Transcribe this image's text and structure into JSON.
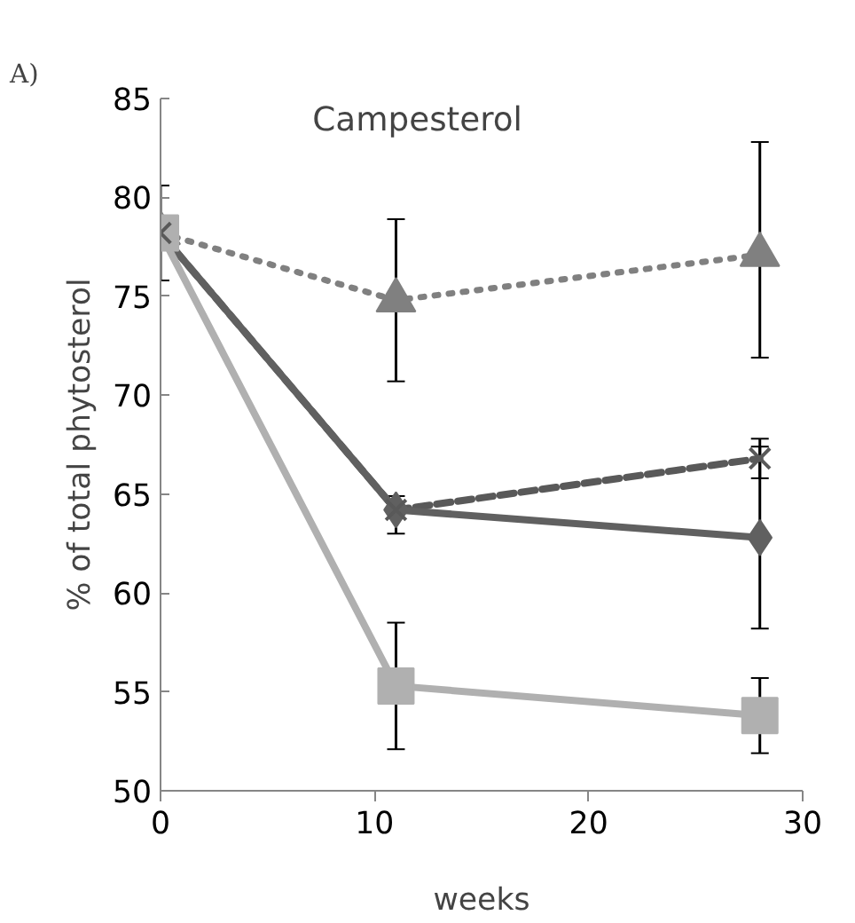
{
  "chart_data": {
    "type": "line",
    "title": "Campesterol",
    "xlabel": "weeks",
    "ylabel": "% of total phytosterol",
    "annotations": [
      "A)"
    ],
    "x": [
      0,
      11,
      28
    ],
    "xlim": [
      0,
      30
    ],
    "xticks": [
      0,
      10,
      20,
      30
    ],
    "ylim": [
      50,
      85
    ],
    "yticks": [
      50,
      55,
      60,
      65,
      70,
      75,
      80,
      85
    ],
    "grid": false,
    "series": [
      {
        "color": "#808080",
        "marker": "triangle",
        "line_style": "dotted",
        "values": [
          78.2,
          74.8,
          77.1
        ],
        "errors": [
          2.4,
          4.1,
          [
            71.9,
            82.8
          ]
        ]
      },
      {
        "color": "#595959",
        "marker": "cross",
        "line_style": "dashed",
        "values": [
          78.2,
          64.2,
          66.8
        ],
        "errors": [
          null,
          null,
          1.0
        ]
      },
      {
        "color": "#606060",
        "marker": "diamond",
        "line_style": "solid",
        "values": [
          78.2,
          64.2,
          62.8
        ],
        "errors": [
          null,
          [
            63.0,
            64.9
          ],
          4.6
        ]
      },
      {
        "color": "#b0b0b0",
        "marker": "square",
        "line_style": "solid",
        "values": [
          78.2,
          55.3,
          53.8
        ],
        "errors": [
          null,
          [
            52.1,
            58.5
          ],
          [
            51.9,
            55.7
          ]
        ]
      }
    ]
  }
}
